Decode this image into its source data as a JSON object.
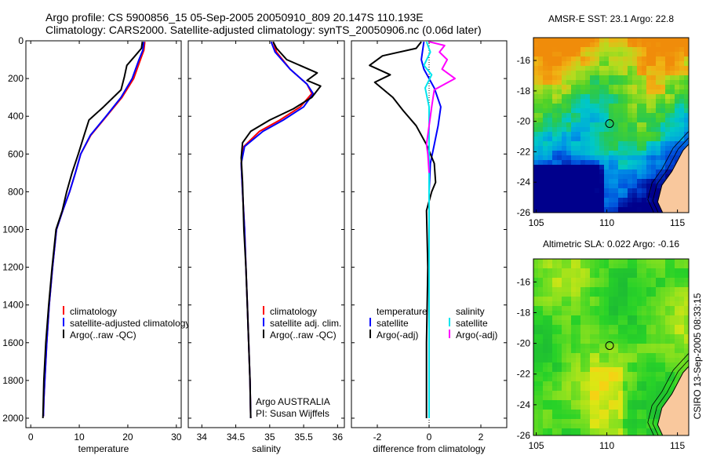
{
  "header": {
    "line1": "Argo profile: CS 5900856_15 05-Sep-2005 20050910_809 20.147S 110.193E",
    "line2": "Climatology: CARS2000. Satellite-adjusted climatology: synTS_20050906.nc (0.06d later)"
  },
  "side_label": "CSIRO 13-Sep-2005 08:33:15",
  "colors": {
    "climatology": "#ff0000",
    "satellite": "#0000ff",
    "argo": "#000000",
    "satellite_salinity": "#00e5ee",
    "argo_adj_salinity": "#ff00ff",
    "land": "#f9c89d"
  },
  "chart_data": [
    {
      "id": "temperature",
      "type": "line",
      "xlabel": "temperature",
      "ylabel": "",
      "xlim": [
        -1,
        31
      ],
      "ylim": [
        2050,
        0
      ],
      "xticks": [
        0,
        10,
        20,
        30
      ],
      "yticks": [
        0,
        200,
        400,
        600,
        800,
        1000,
        1200,
        1400,
        1600,
        1800,
        2000
      ],
      "ytick_labels": [
        "0",
        "200",
        "400",
        "600",
        "800",
        "1000",
        "1200",
        "1400",
        "1600",
        "1800",
        "2000"
      ],
      "legend": [
        "climatology",
        "satellite-adjusted climatology",
        "Argo(..raw -QC)"
      ],
      "series": [
        {
          "name": "climatology",
          "color": "#ff0000",
          "x": [
            23.5,
            23.3,
            22.6,
            21.2,
            18.8,
            15.6,
            12.4,
            10.3,
            9.2,
            8.0,
            6.6,
            5.3,
            4.5,
            3.8,
            3.3,
            2.9,
            2.7,
            2.6
          ],
          "y": [
            5,
            50,
            100,
            200,
            300,
            400,
            500,
            600,
            700,
            800,
            900,
            1000,
            1200,
            1400,
            1600,
            1800,
            1900,
            1990
          ]
        },
        {
          "name": "satellite-adjusted climatology",
          "color": "#0000ff",
          "x": [
            23.3,
            23.1,
            22.3,
            20.9,
            18.6,
            15.5,
            12.3,
            10.3,
            9.2,
            8.0,
            6.6,
            5.3,
            4.5,
            3.8,
            3.3,
            2.9,
            2.7,
            2.6
          ],
          "y": [
            5,
            50,
            100,
            200,
            300,
            400,
            500,
            600,
            700,
            800,
            900,
            1000,
            1200,
            1400,
            1600,
            1800,
            1900,
            1990
          ]
        },
        {
          "name": "Argo(..raw -QC)",
          "color": "#000000",
          "x": [
            23.0,
            22.8,
            21.5,
            19.8,
            19.3,
            18.6,
            15.0,
            12.0,
            11.0,
            9.8,
            8.5,
            7.4,
            6.5,
            5.2,
            4.4,
            3.7,
            3.1,
            2.7,
            2.5
          ],
          "y": [
            5,
            40,
            80,
            130,
            190,
            260,
            350,
            420,
            500,
            600,
            700,
            800,
            900,
            1000,
            1200,
            1400,
            1600,
            1800,
            2000
          ]
        }
      ]
    },
    {
      "id": "salinity",
      "type": "line",
      "xlabel": "salinity",
      "ylabel": "",
      "xlim": [
        33.8,
        36.1
      ],
      "ylim": [
        2050,
        0
      ],
      "xticks": [
        34,
        34.5,
        35,
        35.5,
        36
      ],
      "legend": [
        "climatology",
        "satellite adj. clim.",
        "Argo(..raw -QC)"
      ],
      "annotation": [
        "Argo AUSTRALIA",
        "PI: Susan Wijffels"
      ],
      "series": [
        {
          "name": "climatology",
          "color": "#ff0000",
          "x": [
            35.05,
            35.1,
            35.3,
            35.55,
            35.62,
            35.45,
            35.15,
            34.85,
            34.62,
            34.58,
            34.6,
            34.63,
            34.65,
            34.67,
            34.69,
            34.71,
            34.72
          ],
          "y": [
            5,
            60,
            150,
            230,
            280,
            350,
            420,
            480,
            560,
            650,
            800,
            1000,
            1200,
            1400,
            1600,
            1800,
            2000
          ]
        },
        {
          "name": "satellite adj. clim.",
          "color": "#0000ff",
          "x": [
            35.02,
            35.08,
            35.3,
            35.55,
            35.64,
            35.5,
            35.2,
            34.9,
            34.63,
            34.58,
            34.6,
            34.63,
            34.65,
            34.67,
            34.69,
            34.71,
            34.72
          ],
          "y": [
            5,
            60,
            150,
            230,
            280,
            350,
            420,
            480,
            560,
            650,
            800,
            1000,
            1200,
            1400,
            1600,
            1800,
            2000
          ]
        },
        {
          "name": "Argo(..raw -QC)",
          "color": "#000000",
          "x": [
            35.05,
            35.1,
            35.25,
            35.7,
            35.55,
            35.75,
            35.62,
            35.35,
            35.0,
            34.72,
            34.6,
            34.58,
            34.6,
            34.62,
            34.65,
            34.67,
            34.69,
            34.71,
            34.72
          ],
          "y": [
            5,
            40,
            100,
            170,
            210,
            240,
            300,
            360,
            420,
            480,
            540,
            620,
            750,
            1000,
            1200,
            1400,
            1600,
            1800,
            2000
          ]
        }
      ]
    },
    {
      "id": "difference",
      "type": "line",
      "xlabel": "difference from climatology",
      "ylabel": "",
      "xlim": [
        -3.0,
        3.0
      ],
      "ylim": [
        2050,
        0
      ],
      "xticks": [
        -2,
        0,
        2
      ],
      "legend_temperature": [
        "temperature",
        "satellite",
        "Argo(-adj)"
      ],
      "legend_salinity": [
        "salinity",
        "satellite",
        "Argo(-adj)"
      ],
      "series": [
        {
          "name": "temperature satellite",
          "color": "#0000ff",
          "x": [
            -0.2,
            -0.25,
            -0.3,
            -0.2,
            0.2,
            0.45,
            0.35,
            0.2,
            0.05,
            0.0,
            0.0,
            0.0,
            0.0,
            0.0
          ],
          "y": [
            5,
            50,
            100,
            150,
            250,
            350,
            450,
            550,
            650,
            800,
            1200,
            1600,
            1900,
            2000
          ]
        },
        {
          "name": "temperature Argo(-adj)",
          "color": "#000000",
          "x": [
            -0.3,
            -0.5,
            -1.8,
            -2.3,
            -1.5,
            -2.1,
            -1.4,
            -1.0,
            -0.5,
            -0.1,
            0.2,
            0.25,
            0.1,
            -0.1,
            -0.05,
            -0.1,
            -0.1
          ],
          "y": [
            5,
            40,
            80,
            130,
            180,
            220,
            300,
            370,
            450,
            550,
            650,
            750,
            800,
            900,
            1200,
            1600,
            2000
          ]
        },
        {
          "name": "salinity satellite",
          "color": "#00e5ee",
          "x": [
            -0.1,
            0.05,
            -0.2,
            0.1,
            -0.15,
            0.0,
            0.0,
            0.0,
            0.0,
            0.0,
            0.0
          ],
          "y": [
            5,
            60,
            130,
            180,
            250,
            350,
            600,
            900,
            1300,
            1700,
            2000
          ]
        },
        {
          "name": "salinity Argo(-adj)",
          "color": "#ff00ff",
          "x": [
            0.0,
            0.6,
            0.4,
            0.7,
            0.5,
            1.0,
            0.6,
            0.2,
            0.1,
            0.0,
            -0.1,
            -0.05,
            0.0
          ],
          "y": [
            5,
            25,
            60,
            100,
            150,
            200,
            230,
            260,
            350,
            450,
            550,
            600,
            700
          ]
        }
      ]
    },
    {
      "id": "sst_map",
      "type": "heatmap",
      "title": "AMSR-E SST: 23.1 Argo: 22.8",
      "xlim": [
        104.8,
        115.8
      ],
      "ylim": [
        -26,
        -14.5
      ],
      "xticks": [
        105,
        110,
        115
      ],
      "yticks": [
        -16,
        -18,
        -20,
        -22,
        -24,
        -26
      ],
      "marker": {
        "lon": 110.193,
        "lat": -20.147
      }
    },
    {
      "id": "sla_map",
      "type": "heatmap",
      "title": "Altimetric SLA: 0.022 Argo: -0.16",
      "xlim": [
        104.8,
        115.8
      ],
      "ylim": [
        -26,
        -14.5
      ],
      "xticks": [
        105,
        110,
        115
      ],
      "yticks": [
        -16,
        -18,
        -20,
        -22,
        -24,
        -26
      ],
      "marker": {
        "lon": 110.193,
        "lat": -20.147
      }
    }
  ]
}
